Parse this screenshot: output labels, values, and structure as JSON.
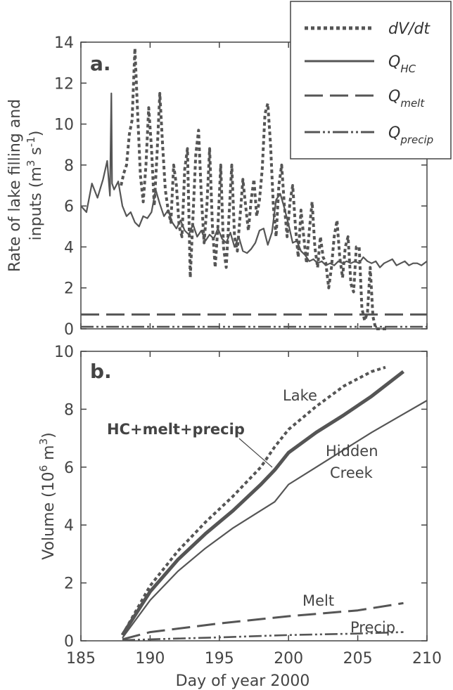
{
  "chart_data": [
    {
      "panel": "a.",
      "type": "line",
      "ylabel_line1": "Rate of lake filling and",
      "ylabel_line2": "inputs (m",
      "ylabel_sup1": "3",
      "ylabel_mid": " s",
      "ylabel_sup2": "-1",
      "ylabel_end": ")",
      "xlim": [
        185,
        210
      ],
      "ylim": [
        0,
        14
      ],
      "yticks": [
        "0",
        "2",
        "4",
        "6",
        "8",
        "10",
        "12",
        "14"
      ],
      "legend_position": "top-right",
      "legend": [
        {
          "label": "dV/dt",
          "style": "dotted"
        },
        {
          "label": "Q",
          "sub": "HC",
          "style": "solid"
        },
        {
          "label": "Q",
          "sub": "melt",
          "style": "dashed"
        },
        {
          "label": "Q",
          "sub": "precip",
          "style": "dashdot"
        }
      ],
      "series": [
        {
          "style": "dotted",
          "x": [
            187.9,
            188.1,
            188.3,
            188.5,
            188.7,
            188.9,
            189.1,
            189.3,
            189.5,
            189.7,
            189.9,
            190.1,
            190.3,
            190.5,
            190.7,
            190.9,
            191.1,
            191.3,
            191.5,
            191.7,
            191.9,
            192.1,
            192.3,
            192.5,
            192.7,
            192.9,
            193.1,
            193.3,
            193.5,
            193.7,
            193.9,
            194.1,
            194.3,
            194.5,
            194.7,
            194.9,
            195.1,
            195.3,
            195.5,
            195.7,
            195.9,
            196.1,
            196.3,
            196.5,
            196.7,
            196.9,
            197.1,
            197.3,
            197.5,
            197.7,
            197.9,
            198.1,
            198.3,
            198.5,
            198.7,
            198.9,
            199.1,
            199.3,
            199.5,
            199.7,
            199.9,
            200.1,
            200.3,
            200.5,
            200.7,
            200.9,
            201.1,
            201.3,
            201.5,
            201.7,
            201.9,
            202.1,
            202.3,
            202.5,
            202.7,
            202.9,
            203.1,
            203.3,
            203.5,
            203.7,
            203.9,
            204.1,
            204.3,
            204.5,
            204.7,
            204.9,
            205.1,
            205.3,
            205.5,
            205.7,
            205.9,
            206.1,
            206.3,
            206.5,
            206.7,
            206.9,
            207.1
          ],
          "y": [
            7.0,
            7.6,
            8.0,
            9.5,
            10.2,
            13.7,
            10.5,
            7.5,
            6.2,
            8.0,
            10.8,
            8.8,
            6.0,
            8.5,
            11.5,
            9.0,
            6.8,
            5.8,
            5.2,
            8.0,
            7.0,
            5.0,
            4.5,
            7.8,
            8.8,
            2.5,
            5.5,
            8.5,
            9.7,
            6.5,
            4.2,
            6.0,
            8.8,
            5.0,
            3.0,
            5.0,
            8.0,
            4.0,
            3.0,
            5.5,
            8.0,
            4.5,
            3.8,
            5.5,
            7.3,
            6.0,
            4.8,
            6.3,
            7.3,
            5.5,
            6.3,
            7.8,
            10.5,
            11.0,
            9.0,
            6.0,
            4.5,
            7.0,
            8.0,
            6.0,
            4.5,
            6.2,
            7.0,
            5.0,
            3.5,
            5.8,
            4.5,
            3.2,
            4.8,
            6.2,
            4.0,
            3.0,
            4.5,
            3.5,
            3.2,
            2.0,
            3.0,
            4.5,
            5.3,
            3.5,
            2.5,
            4.0,
            4.5,
            2.2,
            1.8,
            4.0,
            4.0,
            1.0,
            0.4,
            0.8,
            3.0,
            0.6,
            0.0,
            0.0,
            0.0,
            0.0,
            0.0
          ]
        },
        {
          "style": "solid",
          "x": [
            185.0,
            185.4,
            185.8,
            186.2,
            186.6,
            186.9,
            187.1,
            187.2,
            187.25,
            187.4,
            187.7,
            188.0,
            188.3,
            188.6,
            188.9,
            189.2,
            189.5,
            189.8,
            190.1,
            190.4,
            190.7,
            191.0,
            191.3,
            191.6,
            191.9,
            192.2,
            192.5,
            192.8,
            193.1,
            193.4,
            193.7,
            194.0,
            194.3,
            194.6,
            194.9,
            195.2,
            195.5,
            195.8,
            196.1,
            196.4,
            196.7,
            197.0,
            197.3,
            197.6,
            197.9,
            198.2,
            198.5,
            198.8,
            199.1,
            199.4,
            199.7,
            200.0,
            200.3,
            200.6,
            200.9,
            201.2,
            201.5,
            201.8,
            202.1,
            202.4,
            202.7,
            203.0,
            203.3,
            203.6,
            203.9,
            204.2,
            204.5,
            204.8,
            205.1,
            205.4,
            205.7,
            206.0,
            206.3,
            206.6,
            206.9,
            207.2,
            207.5,
            207.8,
            208.1,
            208.4,
            208.7,
            209.0,
            209.3,
            209.6,
            210.0
          ],
          "y": [
            6.0,
            5.7,
            7.1,
            6.4,
            7.3,
            8.2,
            6.5,
            11.5,
            7.1,
            6.8,
            7.2,
            6.0,
            5.5,
            5.7,
            5.2,
            5.0,
            5.5,
            5.4,
            5.7,
            6.8,
            6.1,
            5.5,
            5.8,
            5.2,
            4.9,
            5.3,
            4.8,
            4.6,
            5.1,
            4.5,
            4.8,
            4.3,
            4.6,
            4.4,
            4.9,
            4.4,
            4.2,
            4.7,
            4.0,
            4.5,
            3.8,
            3.7,
            3.9,
            4.2,
            4.8,
            4.9,
            4.1,
            4.7,
            6.3,
            6.6,
            5.9,
            5.1,
            4.2,
            4.3,
            3.8,
            3.6,
            3.3,
            3.4,
            3.2,
            3.3,
            3.1,
            3.2,
            3.1,
            3.3,
            3.2,
            3.3,
            3.2,
            3.3,
            3.2,
            3.5,
            3.3,
            3.2,
            3.3,
            3.0,
            3.2,
            3.3,
            3.4,
            3.1,
            3.2,
            3.3,
            3.1,
            3.2,
            3.2,
            3.1,
            3.3
          ]
        },
        {
          "style": "dashed",
          "x": [
            185,
            210
          ],
          "y": [
            0.7,
            0.7
          ]
        },
        {
          "style": "dashdot",
          "x": [
            185,
            210
          ],
          "y": [
            0.1,
            0.1
          ]
        }
      ]
    },
    {
      "panel": "b.",
      "type": "line",
      "xlabel": "Day of year 2000",
      "ylabel_pre": "Volume (10",
      "ylabel_sup1": "6",
      "ylabel_mid": " m",
      "ylabel_sup2": "3",
      "ylabel_end": ")",
      "xlim": [
        185,
        210
      ],
      "ylim": [
        0,
        10
      ],
      "xticks": [
        "185",
        "190",
        "195",
        "200",
        "205",
        "210"
      ],
      "yticks": [
        "0",
        "2",
        "4",
        "6",
        "8",
        "10"
      ],
      "annotations": {
        "lake": "Lake",
        "combined": "HC+melt+precip",
        "hc_line1": "Hidden",
        "hc_line2": "Creek",
        "melt": "Melt",
        "precip": "Precip"
      },
      "series": [
        {
          "name": "Lake",
          "style": "dotted",
          "x": [
            188,
            190,
            192,
            194,
            196,
            198,
            199,
            200,
            202,
            204,
            206,
            207
          ],
          "y": [
            0.2,
            1.9,
            3.1,
            4.1,
            5.0,
            6.0,
            6.7,
            7.3,
            8.1,
            8.8,
            9.3,
            9.45
          ]
        },
        {
          "name": "HC+melt+precip",
          "style": "thick",
          "x": [
            188,
            190,
            192,
            194,
            196,
            198,
            199,
            200,
            202,
            204,
            206,
            208.3
          ],
          "y": [
            0.2,
            1.7,
            2.8,
            3.7,
            4.5,
            5.4,
            5.9,
            6.5,
            7.2,
            7.8,
            8.45,
            9.3
          ]
        },
        {
          "name": "Hidden Creek",
          "style": "solid",
          "x": [
            188,
            190,
            192,
            194,
            196,
            198,
            199,
            200,
            202,
            204,
            206,
            208,
            210
          ],
          "y": [
            0.1,
            1.4,
            2.4,
            3.2,
            3.9,
            4.5,
            4.8,
            5.4,
            6.0,
            6.6,
            7.2,
            7.75,
            8.3
          ]
        },
        {
          "name": "Melt",
          "style": "dashed",
          "x": [
            188,
            190,
            195,
            200,
            205,
            208.3
          ],
          "y": [
            0.05,
            0.3,
            0.6,
            0.85,
            1.05,
            1.3
          ]
        },
        {
          "name": "Precip",
          "style": "dashdot",
          "x": [
            188,
            190,
            195,
            200,
            205,
            208.3
          ],
          "y": [
            0.02,
            0.05,
            0.12,
            0.2,
            0.25,
            0.3
          ]
        }
      ]
    }
  ]
}
